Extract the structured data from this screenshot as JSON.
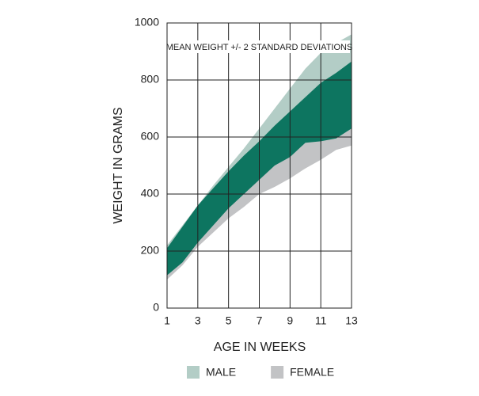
{
  "chart_data": {
    "type": "band",
    "annotation": "MEAN WEIGHT +/- 2 STANDARD DEVIATIONS",
    "x_label": "AGE IN WEEKS",
    "y_label": "WEIGHT IN GRAMS",
    "x": [
      1,
      2,
      3,
      4,
      5,
      6,
      7,
      8,
      9,
      10,
      11,
      12,
      13
    ],
    "series": [
      {
        "name": "MALE",
        "color": "#b3cdc6",
        "upper": [
          220,
          290,
          360,
          430,
          495,
          560,
          630,
          700,
          770,
          840,
          895,
          930,
          960
        ],
        "lower": [
          115,
          160,
          230,
          290,
          350,
          400,
          450,
          500,
          530,
          580,
          585,
          595,
          630
        ]
      },
      {
        "name": "FEMALE",
        "color": "#c2c3c5",
        "upper": [
          210,
          285,
          360,
          420,
          480,
          535,
          585,
          640,
          690,
          740,
          790,
          825,
          865
        ],
        "lower": [
          100,
          150,
          215,
          265,
          315,
          355,
          400,
          425,
          455,
          490,
          520,
          555,
          570
        ]
      }
    ],
    "overlap_color": "#0d7560",
    "xlim": [
      1,
      13
    ],
    "xticks": [
      1,
      3,
      5,
      7,
      9,
      11,
      13
    ],
    "ylim": [
      0,
      1000
    ],
    "yticks": [
      0,
      200,
      400,
      600,
      800,
      1000
    ],
    "grid": true
  }
}
